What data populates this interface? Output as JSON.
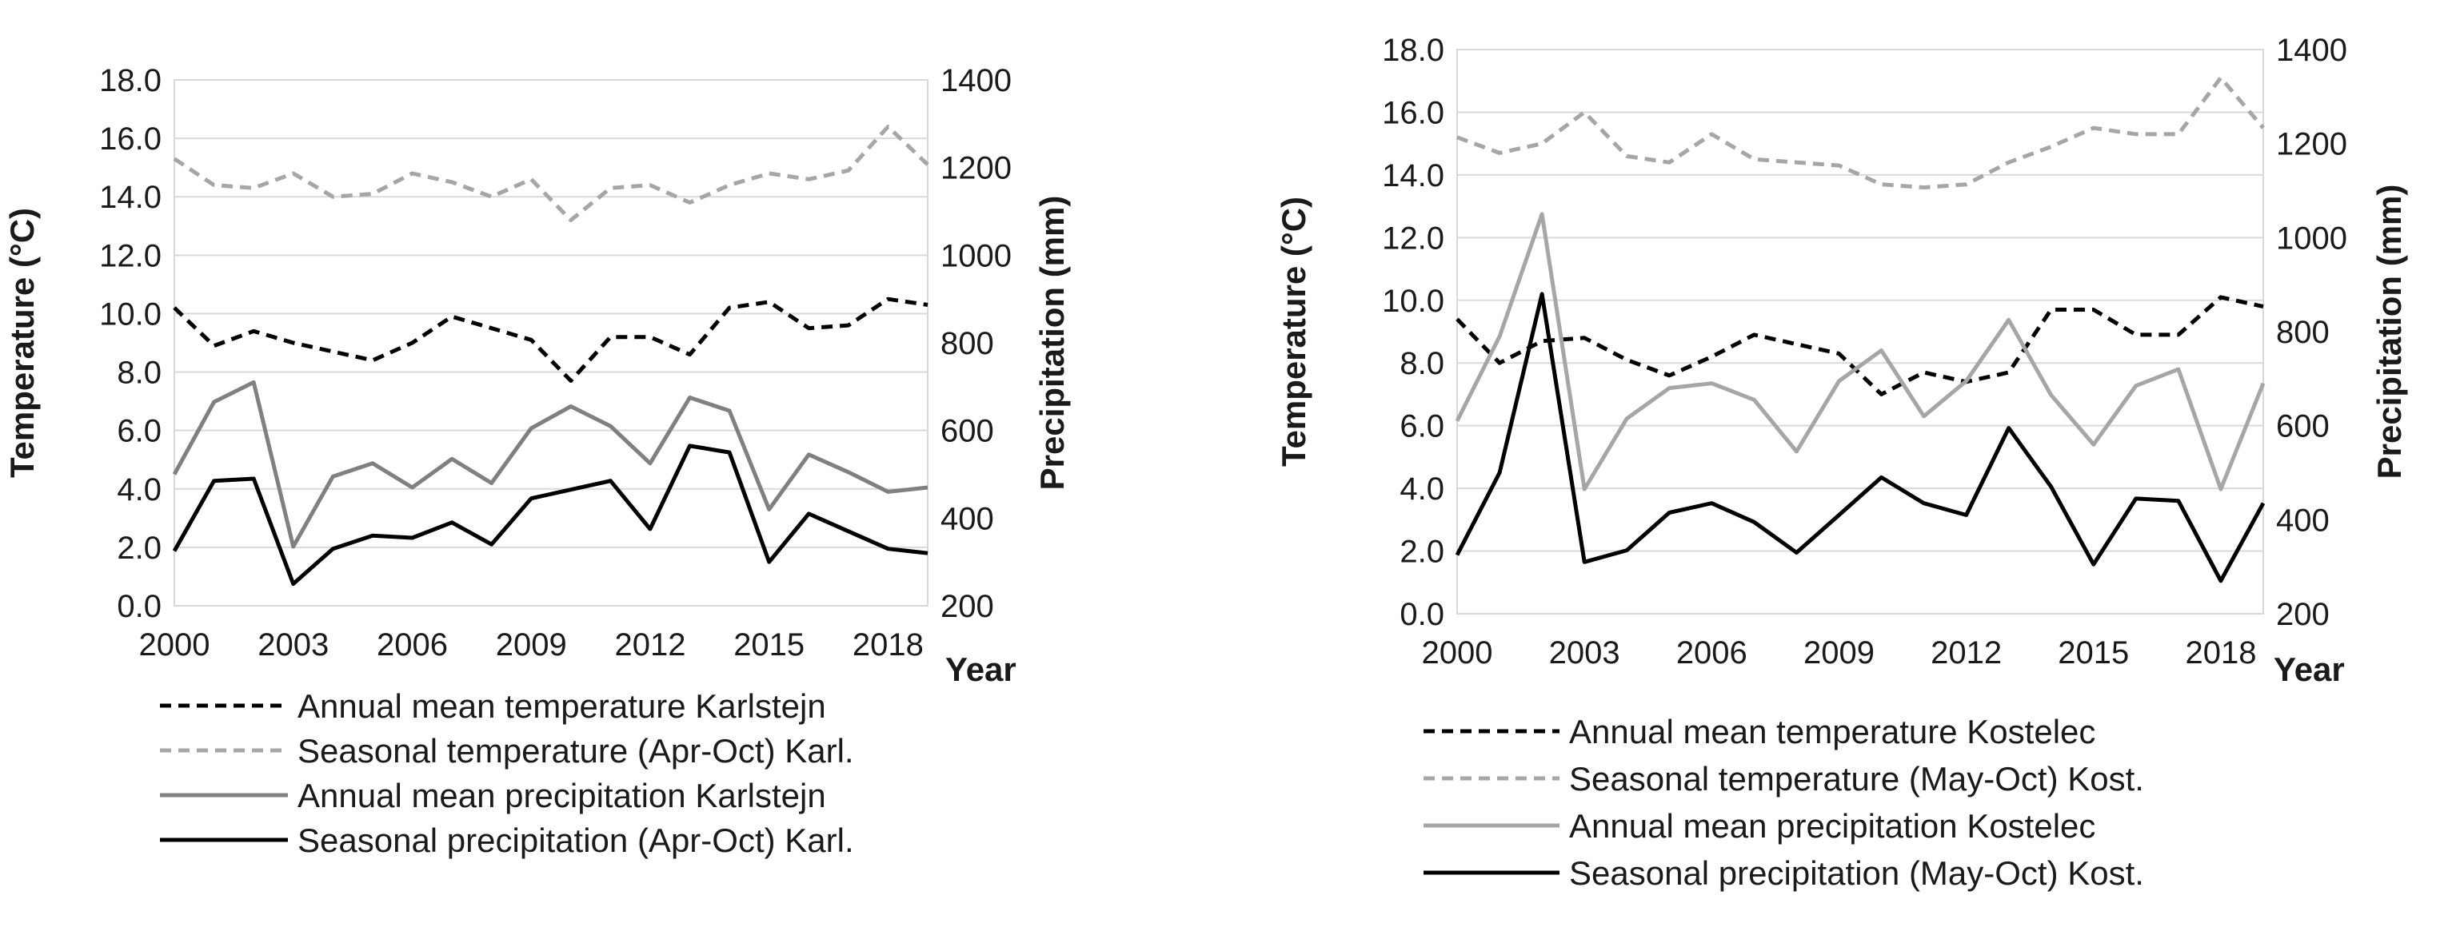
{
  "chart_data": [
    {
      "type": "line",
      "x": [
        2000,
        2001,
        2002,
        2003,
        2004,
        2005,
        2006,
        2007,
        2008,
        2009,
        2010,
        2011,
        2012,
        2013,
        2014,
        2015,
        2016,
        2017,
        2018,
        2019
      ],
      "xticks": [
        "2000",
        "2003",
        "2006",
        "2009",
        "2012",
        "2015",
        "2018"
      ],
      "xlabel": "Year",
      "ylabel": "Temperature (°C)",
      "y2label": "Precipitation (mm)",
      "ylim": [
        0,
        18
      ],
      "yticks": [
        "0.0",
        "2.0",
        "4.0",
        "6.0",
        "8.0",
        "10.0",
        "12.0",
        "14.0",
        "16.0",
        "18.0"
      ],
      "y2lim": [
        200,
        1400
      ],
      "y2ticks": [
        "200",
        "400",
        "600",
        "800",
        "1000",
        "1200",
        "1400"
      ],
      "grid": "horizontal",
      "legend_position": "bottom",
      "series": [
        {
          "name": "Annual mean temperature Karlstejn",
          "axis": "left",
          "style": "dashed",
          "color": "#000000",
          "values": [
            10.2,
            8.9,
            9.4,
            9.0,
            8.7,
            8.4,
            9.0,
            9.9,
            9.5,
            9.1,
            7.7,
            9.2,
            9.2,
            8.6,
            10.2,
            10.4,
            9.5,
            9.6,
            10.5,
            10.3
          ]
        },
        {
          "name": "Seasonal temperature (Apr-Oct) Karl.",
          "axis": "left",
          "style": "dashed",
          "color": "#a6a6a6",
          "values": [
            15.3,
            14.4,
            14.3,
            14.8,
            14.0,
            14.1,
            14.8,
            14.5,
            14.0,
            14.6,
            13.2,
            14.3,
            14.4,
            13.8,
            14.4,
            14.8,
            14.6,
            14.9,
            16.4,
            15.1
          ]
        },
        {
          "name": "Annual mean precipitation Karlstejn",
          "axis": "right",
          "style": "solid",
          "color": "#808080",
          "values": [
            500,
            665,
            710,
            335,
            495,
            525,
            470,
            535,
            480,
            605,
            655,
            610,
            525,
            675,
            645,
            420,
            545,
            505,
            460,
            470
          ]
        },
        {
          "name": "Seasonal precipitation (Apr-Oct) Karl.",
          "axis": "right",
          "style": "solid",
          "color": "#000000",
          "values": [
            325,
            485,
            490,
            250,
            330,
            360,
            355,
            390,
            340,
            445,
            465,
            485,
            375,
            565,
            550,
            300,
            410,
            370,
            330,
            320
          ]
        }
      ]
    },
    {
      "type": "line",
      "x": [
        2000,
        2001,
        2002,
        2003,
        2004,
        2005,
        2006,
        2007,
        2008,
        2009,
        2010,
        2011,
        2012,
        2013,
        2014,
        2015,
        2016,
        2017,
        2018,
        2019
      ],
      "xticks": [
        "2000",
        "2003",
        "2006",
        "2009",
        "2012",
        "2015",
        "2018"
      ],
      "xlabel": "Year",
      "ylabel": "Temperature (°C)",
      "y2label": "Precipitation (mm)",
      "ylim": [
        0,
        18
      ],
      "yticks": [
        "0.0",
        "2.0",
        "4.0",
        "6.0",
        "8.0",
        "10.0",
        "12.0",
        "14.0",
        "16.0",
        "18.0"
      ],
      "y2lim": [
        200,
        1400
      ],
      "y2ticks": [
        "200",
        "400",
        "600",
        "800",
        "1000",
        "1200",
        "1400"
      ],
      "grid": "horizontal",
      "legend_position": "bottom",
      "series": [
        {
          "name": "Annual mean temperature Kostelec",
          "axis": "left",
          "style": "dashed",
          "color": "#000000",
          "values": [
            9.4,
            8.0,
            8.7,
            8.8,
            8.1,
            7.6,
            8.2,
            8.9,
            8.6,
            8.3,
            7.0,
            7.7,
            7.4,
            7.7,
            9.7,
            9.7,
            8.9,
            8.9,
            10.1,
            9.8
          ]
        },
        {
          "name": "Seasonal temperature (May-Oct) Kost.",
          "axis": "left",
          "style": "dashed",
          "color": "#a6a6a6",
          "values": [
            15.2,
            14.7,
            15.0,
            16.0,
            14.6,
            14.4,
            15.3,
            14.5,
            14.4,
            14.3,
            13.7,
            13.6,
            13.7,
            14.4,
            14.9,
            15.5,
            15.3,
            15.3,
            17.1,
            15.5
          ]
        },
        {
          "name": "Annual mean precipitation Kostelec",
          "axis": "right",
          "style": "solid",
          "color": "#a6a6a6",
          "values": [
            610,
            790,
            1050,
            465,
            615,
            680,
            690,
            655,
            545,
            695,
            760,
            620,
            695,
            825,
            665,
            560,
            685,
            720,
            465,
            690
          ]
        },
        {
          "name": "Seasonal precipitation (May-Oct) Kost.",
          "axis": "right",
          "style": "solid",
          "color": "#000000",
          "values": [
            325,
            500,
            880,
            310,
            335,
            415,
            435,
            395,
            330,
            410,
            490,
            435,
            410,
            595,
            470,
            305,
            445,
            440,
            270,
            435
          ]
        }
      ]
    }
  ]
}
